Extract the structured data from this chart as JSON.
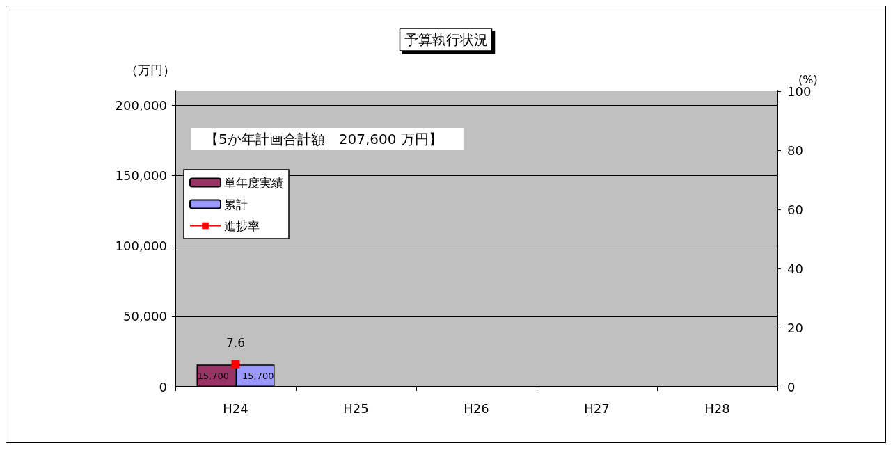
{
  "chart_data": {
    "type": "bar",
    "title": "予算執行状況",
    "ylabel": "（万円）",
    "y2label": "(%)",
    "annotations": [
      "【5か年計画合計額　207,600 万円】"
    ],
    "categories": [
      "H24",
      "H25",
      "H26",
      "H27",
      "H28"
    ],
    "series": [
      {
        "name": "単年度実績",
        "color": "#993366",
        "values": [
          15700,
          null,
          null,
          null,
          null
        ],
        "value_labels": [
          "15,700",
          null,
          null,
          null,
          null
        ]
      },
      {
        "name": "累計",
        "color": "#9999ff",
        "values": [
          15700,
          null,
          null,
          null,
          null
        ],
        "value_labels": [
          "15,700",
          null,
          null,
          null,
          null
        ]
      },
      {
        "name": "進捗率",
        "type": "line",
        "axis": "y2",
        "color": "#ff0000",
        "marker": "square",
        "values": [
          7.6,
          null,
          null,
          null,
          null
        ]
      }
    ],
    "ylim": [
      0,
      210000
    ],
    "yticks": [
      0,
      {
        "value": 50000,
        "label": "50,000"
      },
      {
        "value": 100000,
        "label": "100,000"
      },
      {
        "value": 150000,
        "label": "150,000"
      },
      {
        "value": 200000,
        "label": "200,000"
      }
    ],
    "y2lim": [
      0,
      100
    ],
    "y2ticks": [
      0,
      20,
      40,
      60,
      80,
      100
    ],
    "data_labels": true,
    "grid": "y",
    "legend": "top left"
  }
}
